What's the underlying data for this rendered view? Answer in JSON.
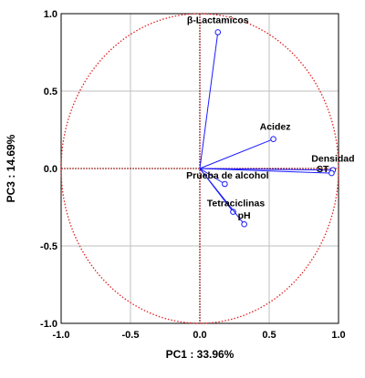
{
  "chart_data": {
    "type": "scatter",
    "subtype": "pca-loading-circle",
    "xlabel": "PC1 : 33.96%",
    "ylabel": "PC3 : 14.69%",
    "xlim": [
      -1.0,
      1.0
    ],
    "ylim": [
      -1.0,
      1.0
    ],
    "x_ticks": [
      "-1.0",
      "-0.5",
      "0.0",
      "0.5",
      "1.0"
    ],
    "y_ticks": [
      "1.0",
      "0.5",
      "0.0",
      "-0.5",
      "-1.0"
    ],
    "grid": true,
    "unit_circle": true,
    "points": [
      {
        "label": "β-Lactamicos",
        "x": 0.13,
        "y": 0.88
      },
      {
        "label": "Acidez",
        "x": 0.53,
        "y": 0.19
      },
      {
        "label": "Densidad",
        "x": 0.96,
        "y": -0.01
      },
      {
        "label": "ST",
        "x": 0.95,
        "y": -0.03
      },
      {
        "label": "Prueba de alcohol",
        "x": 0.18,
        "y": -0.1
      },
      {
        "label": "Tetraciclinas",
        "x": 0.24,
        "y": -0.28
      },
      {
        "label": "pH",
        "x": 0.32,
        "y": -0.36
      }
    ],
    "colors": {
      "vectors": "#1a1aff",
      "circle": "#e02020",
      "axes": "#8b0000",
      "grid": "#bfbfbf"
    }
  }
}
